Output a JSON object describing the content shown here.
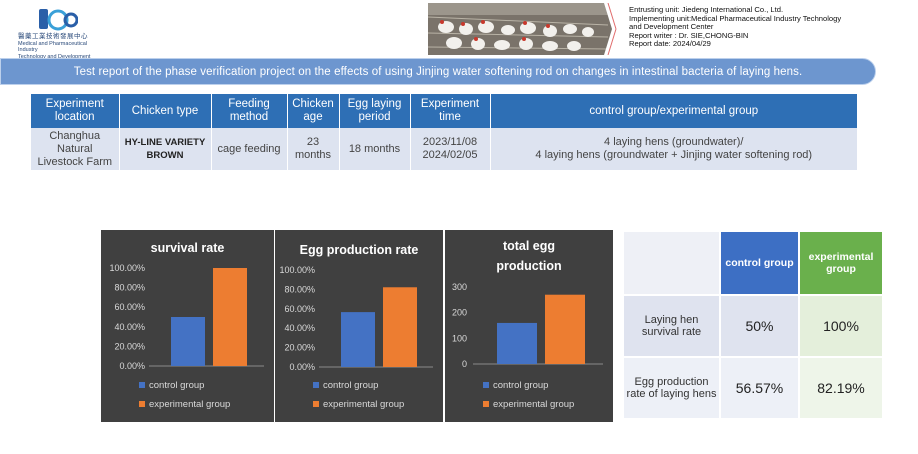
{
  "header": {
    "logo_text": "Pdc",
    "logo_cn": "醫藥工業技術發展中心",
    "logo_en_line1": "Medical and Pharmaceutical Industry",
    "logo_en_line2": "Technology and Development Center",
    "info": {
      "entrusting": "Entrusting unit: Jiedeng International Co., Ltd.",
      "implementing": "Implementing unit:Medical Pharmaceutical Industry Technology",
      "implementing2": "and Development Center",
      "writer": "Report writer : Dr. SIE,CHONG-BIN",
      "date": "Report date: 2024/04/29"
    },
    "title": "Test report of the phase verification project on the effects of using Jinjing water softening rod on changes in intestinal bacteria of laying hens."
  },
  "info_table": {
    "headers": [
      "Experiment location",
      "Chicken type",
      "Feeding method",
      "Chicken age",
      "Egg laying period",
      "Experiment time",
      "control group/experimental group"
    ],
    "row": {
      "location": "Changhua Natural Livestock Farm",
      "chicken_type": "HY-LINE VARIETY BROWN",
      "feeding": "cage feeding",
      "age": "23 months",
      "laying_period": "18 months",
      "time_start": "2023/11/08",
      "time_end": "2024/02/05",
      "groups_line1": "4 laying hens (groundwater)/",
      "groups_line2": "4 laying hens (groundwater + Jinjing water softening rod)"
    }
  },
  "colors": {
    "control": "#4472c4",
    "experimental": "#ed7d31",
    "chart_bg": "#404040",
    "band": "#6d96cf",
    "table_header": "#2e6fb5"
  },
  "chart_data": [
    {
      "type": "bar",
      "title": "survival  rate",
      "categories": [
        ""
      ],
      "series": [
        {
          "name": "control group",
          "values": [
            50
          ]
        },
        {
          "name": "experimental group",
          "values": [
            100
          ]
        }
      ],
      "ylim": [
        0,
        100
      ],
      "yticks": [
        "0.00%",
        "20.00%",
        "40.00%",
        "60.00%",
        "80.00%",
        "100.00%"
      ],
      "legend": "bottom",
      "grid": false
    },
    {
      "type": "bar",
      "title": "Egg production rate",
      "categories": [
        ""
      ],
      "series": [
        {
          "name": "control group",
          "values": [
            56.57
          ]
        },
        {
          "name": "experimental group",
          "values": [
            82.19
          ]
        }
      ],
      "ylim": [
        0,
        100
      ],
      "yticks": [
        "0.00%",
        "20.00%",
        "40.00%",
        "60.00%",
        "80.00%",
        "100.00%"
      ],
      "legend": "bottom",
      "grid": false
    },
    {
      "type": "bar",
      "title": "total egg production",
      "categories": [
        ""
      ],
      "series": [
        {
          "name": "control group",
          "values": [
            160
          ]
        },
        {
          "name": "experimental group",
          "values": [
            270
          ]
        }
      ],
      "ylim": [
        0,
        300
      ],
      "yticks": [
        "0",
        "100",
        "200",
        "300"
      ],
      "legend": "bottom",
      "grid": false
    }
  ],
  "summary_table": {
    "col_control": "control group",
    "col_experimental": "experimental group",
    "rows": [
      {
        "label": "Laying hen survival rate",
        "control": "50%",
        "experimental": "100%"
      },
      {
        "label": "Egg production rate of laying hens",
        "control": "56.57%",
        "experimental": "82.19%"
      }
    ]
  }
}
